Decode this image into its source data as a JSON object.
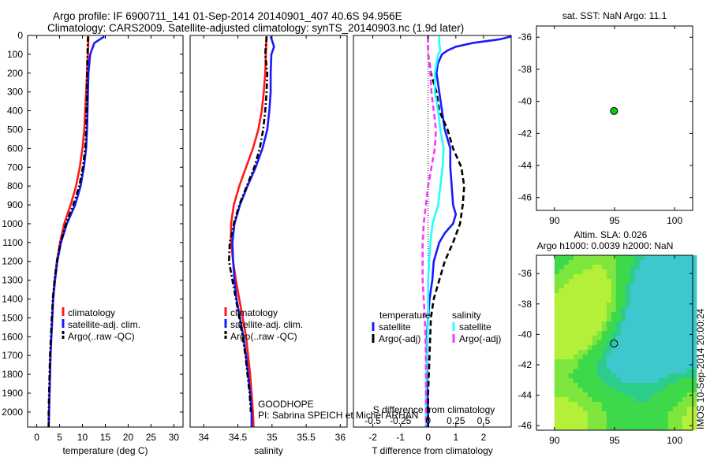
{
  "header": {
    "line1": "Argo profile: IF 6900711_141 01-Sep-2014 20140901_407 40.6S 94.956E",
    "line2": "Climatology: CARS2009. Satellite-adjusted climatology: synTS_20140903.nc (1.9d later)"
  },
  "colors": {
    "climatology": "#ff1a1a",
    "satellite": "#1a1aff",
    "argo": "#000000",
    "cyan": "#22ffff",
    "magenta": "#ff33ff",
    "seed": "#12c712"
  },
  "chart_data": [
    {
      "type": "line",
      "id": "temperature",
      "xlabel": "temperature (deg C)",
      "ylabel": "",
      "xlim": [
        -2,
        32
      ],
      "ylim": [
        2080,
        0
      ],
      "xticks": [
        0,
        5,
        10,
        15,
        20,
        25,
        30
      ],
      "yticks": [
        0,
        100,
        200,
        300,
        400,
        500,
        600,
        700,
        800,
        900,
        1000,
        1100,
        1200,
        1300,
        1400,
        1500,
        1600,
        1700,
        1800,
        1900,
        2000
      ],
      "legend": [
        "climatology",
        "satellite-adj. clim.",
        "Argo(..raw -QC)"
      ],
      "series": [
        {
          "name": "climatology",
          "style": "solid",
          "color": "#ff1a1a",
          "depth": [
            5,
            100,
            200,
            300,
            400,
            500,
            600,
            700,
            800,
            900,
            1000,
            1100,
            1200,
            1300,
            1400,
            1500,
            1600,
            1700,
            1800,
            1900,
            2000,
            2080
          ],
          "values": [
            11.3,
            11.2,
            11.0,
            10.8,
            10.6,
            10.4,
            10.0,
            9.4,
            8.6,
            7.4,
            6.0,
            5.1,
            4.4,
            3.9,
            3.6,
            3.4,
            3.2,
            3.0,
            2.9,
            2.8,
            2.7,
            2.6
          ]
        },
        {
          "name": "satellite-adj. clim.",
          "style": "solid",
          "color": "#1a1aff",
          "depth": [
            5,
            40,
            80,
            100,
            150,
            200,
            300,
            400,
            500,
            600,
            700,
            800,
            900,
            1000,
            1100,
            1200,
            1300,
            1400,
            1500,
            1600,
            1700,
            1800,
            1900,
            2000,
            2080
          ],
          "values": [
            14.8,
            12.6,
            12.0,
            11.7,
            11.5,
            11.3,
            11.2,
            11.1,
            11.0,
            10.8,
            10.3,
            9.6,
            8.4,
            6.6,
            5.3,
            4.5,
            4.0,
            3.6,
            3.4,
            3.2,
            3.0,
            2.9,
            2.8,
            2.7,
            2.6
          ]
        },
        {
          "name": "Argo(..raw -QC)",
          "style": "dashdot",
          "color": "#000000",
          "depth": [
            5,
            100,
            200,
            300,
            400,
            500,
            600,
            700,
            800,
            900,
            1000,
            1100,
            1200,
            1300,
            1400,
            1500,
            1600,
            1700,
            1800,
            1900,
            2000,
            2080
          ],
          "values": [
            11.2,
            11.1,
            11.0,
            11.0,
            10.9,
            10.8,
            10.6,
            10.1,
            9.3,
            8.0,
            6.4,
            5.2,
            4.4,
            3.9,
            3.5,
            3.3,
            3.1,
            2.9,
            2.8,
            2.7,
            2.6,
            2.6
          ]
        }
      ]
    },
    {
      "type": "line",
      "id": "salinity",
      "xlabel": "salinity",
      "ylabel": "",
      "xlim": [
        33.8,
        36.1
      ],
      "ylim": [
        2080,
        0
      ],
      "xticks": [
        34,
        34.5,
        35,
        35.5,
        36
      ],
      "xticklabels": [
        "34",
        "34.5",
        "35",
        "35.5",
        "36"
      ],
      "legend": [
        "climatology",
        "satellite-adj. clim.",
        "Argo(..raw -QC)"
      ],
      "annotation": [
        "GOODHOPE",
        "PI: Sabrina SPEICH et Michel ARHAN"
      ],
      "series": [
        {
          "name": "climatology",
          "style": "solid",
          "color": "#ff1a1a",
          "depth": [
            5,
            100,
            200,
            300,
            400,
            500,
            600,
            700,
            800,
            900,
            1000,
            1100,
            1200,
            1300,
            1400,
            1500,
            1600,
            1700,
            1800,
            1900,
            2000,
            2080
          ],
          "values": [
            34.92,
            34.91,
            34.9,
            34.88,
            34.85,
            34.8,
            34.72,
            34.62,
            34.52,
            34.44,
            34.4,
            34.4,
            34.43,
            34.47,
            34.52,
            34.57,
            34.62,
            34.65,
            34.68,
            34.7,
            34.72,
            34.73
          ]
        },
        {
          "name": "satellite-adj. clim.",
          "style": "solid",
          "color": "#1a1aff",
          "depth": [
            5,
            60,
            100,
            200,
            300,
            400,
            500,
            600,
            700,
            800,
            900,
            1000,
            1100,
            1200,
            1300,
            1400,
            1500,
            1600,
            1700,
            1800,
            1900,
            2000,
            2080
          ],
          "values": [
            34.98,
            35.03,
            34.99,
            34.98,
            34.98,
            34.96,
            34.93,
            34.86,
            34.76,
            34.64,
            34.53,
            34.45,
            34.42,
            34.43,
            34.45,
            34.48,
            34.53,
            34.58,
            34.62,
            34.65,
            34.68,
            34.7,
            34.7
          ]
        },
        {
          "name": "Argo(..raw -QC)",
          "style": "dashdot",
          "color": "#000000",
          "depth": [
            5,
            100,
            200,
            300,
            400,
            500,
            600,
            700,
            800,
            900,
            1000,
            1100,
            1200,
            1300,
            1400,
            1500,
            1600,
            1700,
            1800,
            1900,
            2000
          ],
          "values": [
            34.92,
            34.9,
            34.93,
            34.92,
            34.9,
            34.87,
            34.82,
            34.74,
            34.63,
            34.52,
            34.44,
            34.38,
            34.37,
            34.42,
            34.47,
            34.52,
            34.57,
            34.61,
            34.64,
            34.67,
            34.69
          ]
        }
      ]
    },
    {
      "type": "line",
      "id": "difference",
      "xlabel": "T difference from climatology",
      "ylabel": "",
      "xlim": [
        -2.7,
        3.0
      ],
      "ylim": [
        2080,
        0
      ],
      "xticks": [
        -2,
        -1,
        0,
        1,
        2
      ],
      "xticklabels": [
        "-2",
        "-1",
        "0",
        "1",
        "2"
      ],
      "top_xlabel": "S difference from climatology",
      "top_xticks": [
        -0.5,
        -0.25,
        0,
        0.25,
        0.5
      ],
      "top_xticklabels": [
        "-0.5",
        "-0.25",
        "0",
        "0.25",
        "0.5"
      ],
      "legend_titles": [
        "temperature",
        "salinity"
      ],
      "legend": [
        "satellite",
        "Argo(-adj)",
        "satellite",
        "Argo(-adj)"
      ],
      "series": [
        {
          "name": "satellite",
          "group": "temperature",
          "style": "solid",
          "color": "#1a1aff",
          "depth": [
            5,
            20,
            40,
            60,
            80,
            100,
            150,
            200,
            300,
            400,
            500,
            600,
            700,
            800,
            900,
            950,
            1000,
            1050,
            1100,
            1200,
            1300,
            1400,
            1500,
            1600,
            1800,
            2000,
            2080
          ],
          "values": [
            3.0,
            2.6,
            1.6,
            1.0,
            0.7,
            0.5,
            0.35,
            0.3,
            0.4,
            0.5,
            0.6,
            0.8,
            0.8,
            0.85,
            0.9,
            1.0,
            0.9,
            0.6,
            0.4,
            0.2,
            0.15,
            0.05,
            0.0,
            -0.05,
            -0.05,
            0.0,
            0.0
          ]
        },
        {
          "name": "Argo(-adj)",
          "group": "temperature",
          "style": "dashed",
          "color": "#000000",
          "depth": [
            5,
            100,
            200,
            300,
            400,
            500,
            600,
            700,
            800,
            900,
            1000,
            1100,
            1200,
            1300,
            1400,
            1500,
            1700,
            1900,
            2080
          ],
          "values": [
            0.0,
            0.0,
            0.1,
            0.3,
            0.4,
            0.7,
            0.9,
            1.2,
            1.3,
            1.25,
            1.15,
            0.9,
            0.6,
            0.4,
            0.2,
            0.1,
            0.05,
            0.0,
            0.0
          ]
        },
        {
          "name": "satellite",
          "group": "salinity",
          "style": "solid",
          "color": "#22ffff",
          "depth": [
            5,
            40,
            80,
            100,
            200,
            300,
            400,
            500,
            600,
            700,
            800,
            900,
            1000,
            1100,
            1200,
            1300,
            1500,
            1700,
            1900,
            2080
          ],
          "values": [
            0.1,
            0.1,
            0.11,
            0.09,
            0.06,
            0.06,
            0.09,
            0.11,
            0.14,
            0.13,
            0.11,
            0.09,
            0.04,
            0.02,
            0.01,
            0.0,
            0.0,
            -0.01,
            -0.02,
            -0.02
          ]
        },
        {
          "name": "Argo(-adj)",
          "group": "salinity",
          "style": "dashed",
          "color": "#ff33ff",
          "depth": [
            5,
            100,
            200,
            300,
            400,
            500,
            600,
            700,
            800,
            900,
            1000,
            1100,
            1200,
            1300,
            1400,
            1500,
            1700,
            1900,
            2080
          ],
          "values": [
            0.0,
            0.0,
            0.02,
            0.03,
            0.05,
            0.07,
            0.06,
            0.03,
            0.0,
            -0.02,
            -0.04,
            -0.05,
            -0.05,
            -0.05,
            -0.04,
            -0.03,
            -0.02,
            -0.02,
            -0.02
          ]
        }
      ]
    },
    {
      "type": "scatter",
      "id": "map_sst",
      "title": "sat. SST: NaN Argo: 11.1",
      "xlim": [
        88.5,
        101.5
      ],
      "ylim": [
        -46.8,
        -35.3
      ],
      "xticks": [
        90,
        95,
        100
      ],
      "yticks": [
        -36,
        -38,
        -40,
        -42,
        -44,
        -46
      ],
      "points": [
        {
          "lon": 94.956,
          "lat": -40.6
        }
      ]
    },
    {
      "type": "heatmap",
      "id": "map_sla",
      "title": "Altim. SLA: 0.026",
      "subtitle": "Argo h1000: 0.0039 h2000: NaN",
      "xlim": [
        88.5,
        101.5
      ],
      "ylim": [
        -46.3,
        -34.8
      ],
      "field_lon_range": [
        90,
        101.5
      ],
      "xticks": [
        90,
        95,
        100
      ],
      "yticks": [
        -36,
        -38,
        -40,
        -42,
        -44,
        -46
      ],
      "points": [
        {
          "lon": 94.956,
          "lat": -40.6
        }
      ],
      "side_label": "IMOS 10-Sep-2014 20:00:24"
    }
  ]
}
